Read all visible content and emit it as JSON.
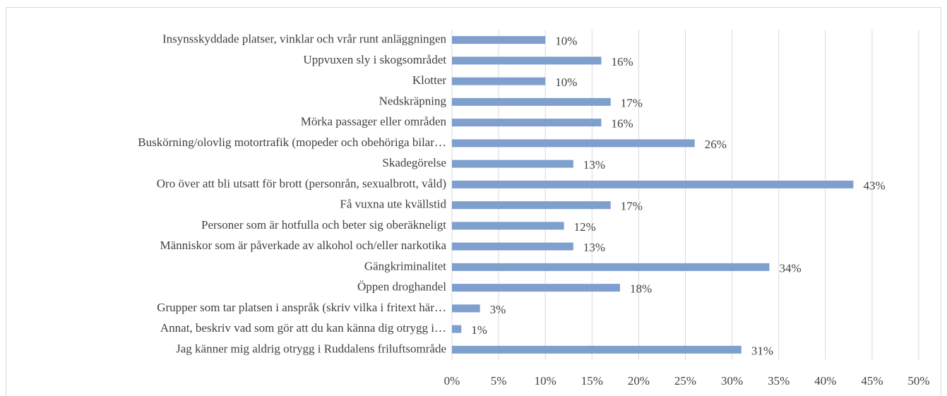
{
  "chart_data": {
    "type": "barh",
    "categories": [
      "Insynsskyddade platser, vinklar och vrår runt anläggningen",
      "Uppvuxen sly i skogsområdet",
      "Klotter",
      "Nedskräpning",
      "Mörka passager eller områden",
      "Buskörning/olovlig motortrafik (mopeder och obehöriga bilar…",
      "Skadegörelse",
      "Oro över att bli utsatt för brott (personrån, sexualbrott, våld)",
      "Få vuxna ute kvällstid",
      "Personer som är hotfulla och beter sig oberäkneligt",
      "Människor som är påverkade av alkohol och/eller narkotika",
      "Gängkriminalitet",
      "Öppen droghandel",
      "Grupper som tar platsen i anspråk (skriv vilka i fritext här…",
      "Annat, beskriv vad som gör att du kan känna dig otrygg i…",
      "Jag känner mig aldrig otrygg i Ruddalens friluftsområde"
    ],
    "values": [
      10,
      16,
      10,
      17,
      16,
      26,
      13,
      43,
      17,
      12,
      13,
      34,
      18,
      3,
      1,
      31
    ],
    "value_labels": [
      "10%",
      "16%",
      "10%",
      "17%",
      "16%",
      "26%",
      "13%",
      "43%",
      "17%",
      "12%",
      "13%",
      "34%",
      "18%",
      "3%",
      "1%",
      "31%"
    ],
    "color": "#7f9fcf",
    "xlim": [
      0,
      50
    ],
    "xticks": [
      {
        "value": 0,
        "label": "0%"
      },
      {
        "value": 5,
        "label": "5%"
      },
      {
        "value": 10,
        "label": "10%"
      },
      {
        "value": 15,
        "label": "15%"
      },
      {
        "value": 20,
        "label": "20%"
      },
      {
        "value": 25,
        "label": "25%"
      },
      {
        "value": 30,
        "label": "30%"
      },
      {
        "value": 35,
        "label": "35%"
      },
      {
        "value": 40,
        "label": "40%"
      },
      {
        "value": 45,
        "label": "45%"
      },
      {
        "value": 50,
        "label": "50%"
      }
    ],
    "grid": true
  }
}
